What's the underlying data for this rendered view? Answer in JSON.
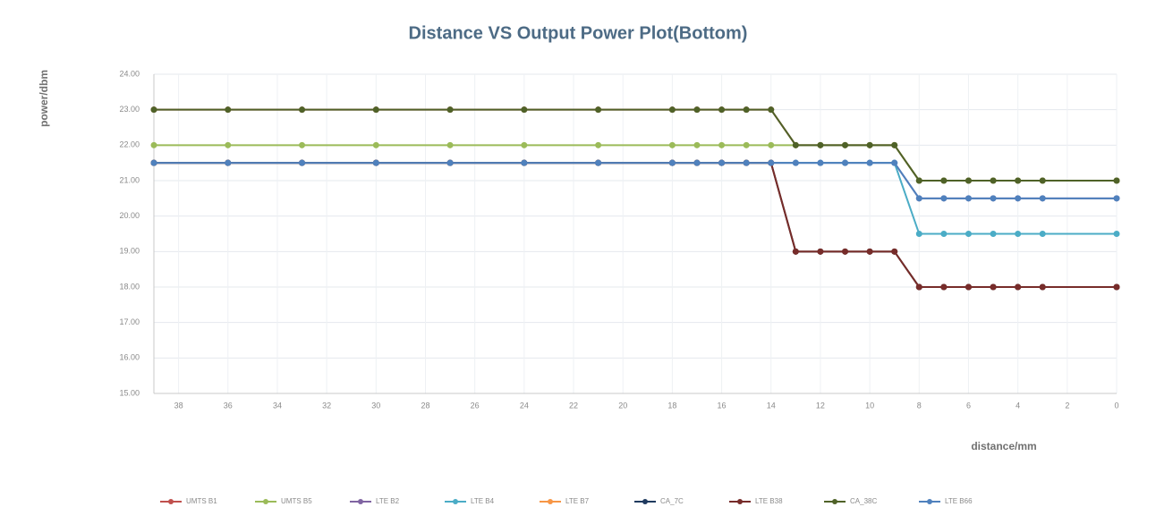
{
  "chart_data": {
    "type": "line",
    "title": "Distance VS Output Power Plot(Bottom)",
    "y_label": "power/dbm",
    "x_label": "distance/mm",
    "x": [
      39,
      36,
      33,
      30,
      27,
      24,
      21,
      18,
      17,
      16,
      15,
      14,
      13,
      12,
      11,
      10,
      9,
      8,
      7,
      6,
      5,
      4,
      3,
      0
    ],
    "xlim": [
      39,
      0
    ],
    "xticks": [
      38,
      36,
      34,
      32,
      30,
      28,
      26,
      24,
      22,
      20,
      18,
      16,
      14,
      12,
      10,
      8,
      6,
      4,
      2,
      0
    ],
    "ylim": [
      15,
      24
    ],
    "yticks": [
      {
        "value": 15,
        "label": "15.00"
      },
      {
        "value": 16,
        "label": "16.00"
      },
      {
        "value": 17,
        "label": "17.00"
      },
      {
        "value": 18,
        "label": "18.00"
      },
      {
        "value": 19,
        "label": "19.00"
      },
      {
        "value": 20,
        "label": "20.00"
      },
      {
        "value": 21,
        "label": "21.00"
      },
      {
        "value": 22,
        "label": "22.00"
      },
      {
        "value": 23,
        "label": "23.00"
      },
      {
        "value": 24,
        "label": "24.00"
      }
    ],
    "grid": true,
    "legend": "bottom",
    "series": [
      {
        "name": "UMTS B1",
        "color": "#c0504d",
        "values": [
          23,
          23,
          23,
          23,
          23,
          23,
          23,
          23,
          23,
          23,
          23,
          23,
          22,
          22,
          22,
          22,
          22,
          21,
          21,
          21,
          21,
          21,
          21,
          21
        ]
      },
      {
        "name": "UMTS B5",
        "color": "#9bbb59",
        "values": [
          22,
          22,
          22,
          22,
          22,
          22,
          22,
          22,
          22,
          22,
          22,
          22,
          22,
          22,
          22,
          22,
          22,
          21,
          21,
          21,
          21,
          21,
          21,
          21
        ]
      },
      {
        "name": "LTE B2",
        "color": "#8064a2",
        "values": [
          21.5,
          21.5,
          21.5,
          21.5,
          21.5,
          21.5,
          21.5,
          21.5,
          21.5,
          21.5,
          21.5,
          21.5,
          21.5,
          21.5,
          21.5,
          21.5,
          21.5,
          20.5,
          20.5,
          20.5,
          20.5,
          20.5,
          20.5,
          20.5
        ]
      },
      {
        "name": "LTE B4",
        "color": "#4bacc6",
        "values": [
          21.5,
          21.5,
          21.5,
          21.5,
          21.5,
          21.5,
          21.5,
          21.5,
          21.5,
          21.5,
          21.5,
          21.5,
          21.5,
          21.5,
          21.5,
          21.5,
          21.5,
          19.5,
          19.5,
          19.5,
          19.5,
          19.5,
          19.5,
          19.5
        ]
      },
      {
        "name": "LTE B7",
        "color": "#f79646",
        "values": [
          21.5,
          21.5,
          21.5,
          21.5,
          21.5,
          21.5,
          21.5,
          21.5,
          21.5,
          21.5,
          21.5,
          21.5,
          19,
          19,
          19,
          19,
          19,
          18,
          18,
          18,
          18,
          18,
          18,
          18
        ]
      },
      {
        "name": "CA_7C",
        "color": "#1f3a5f",
        "values": [
          21.5,
          21.5,
          21.5,
          21.5,
          21.5,
          21.5,
          21.5,
          21.5,
          21.5,
          21.5,
          21.5,
          21.5,
          19,
          19,
          19,
          19,
          19,
          18,
          18,
          18,
          18,
          18,
          18,
          18
        ]
      },
      {
        "name": "LTE B38",
        "color": "#772c2a",
        "values": [
          21.5,
          21.5,
          21.5,
          21.5,
          21.5,
          21.5,
          21.5,
          21.5,
          21.5,
          21.5,
          21.5,
          21.5,
          19,
          19,
          19,
          19,
          19,
          18,
          18,
          18,
          18,
          18,
          18,
          18
        ]
      },
      {
        "name": "CA_38C",
        "color": "#4f6228",
        "values": [
          23,
          23,
          23,
          23,
          23,
          23,
          23,
          23,
          23,
          23,
          23,
          23,
          22,
          22,
          22,
          22,
          22,
          21,
          21,
          21,
          21,
          21,
          21,
          21
        ]
      },
      {
        "name": "LTE B66",
        "color": "#4f81bd",
        "values": [
          21.5,
          21.5,
          21.5,
          21.5,
          21.5,
          21.5,
          21.5,
          21.5,
          21.5,
          21.5,
          21.5,
          21.5,
          21.5,
          21.5,
          21.5,
          21.5,
          21.5,
          20.5,
          20.5,
          20.5,
          20.5,
          20.5,
          20.5,
          20.5
        ]
      }
    ]
  }
}
